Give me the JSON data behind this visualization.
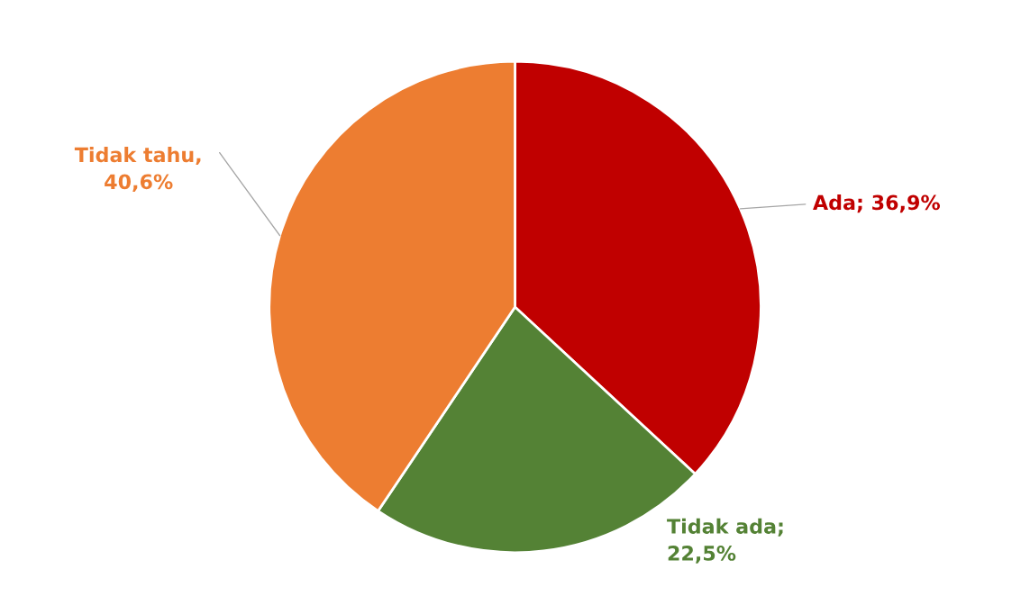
{
  "chart_data": {
    "type": "pie",
    "categories": [
      "Ada",
      "Tidak ada",
      "Tidak tahu"
    ],
    "values": [
      36.9,
      22.5,
      40.6
    ],
    "colors": [
      "#c00000",
      "#548235",
      "#ed7d31"
    ],
    "value_labels": [
      "; 36,9%",
      ";\n22,5%",
      ",\n40,6%"
    ],
    "legend": false
  }
}
